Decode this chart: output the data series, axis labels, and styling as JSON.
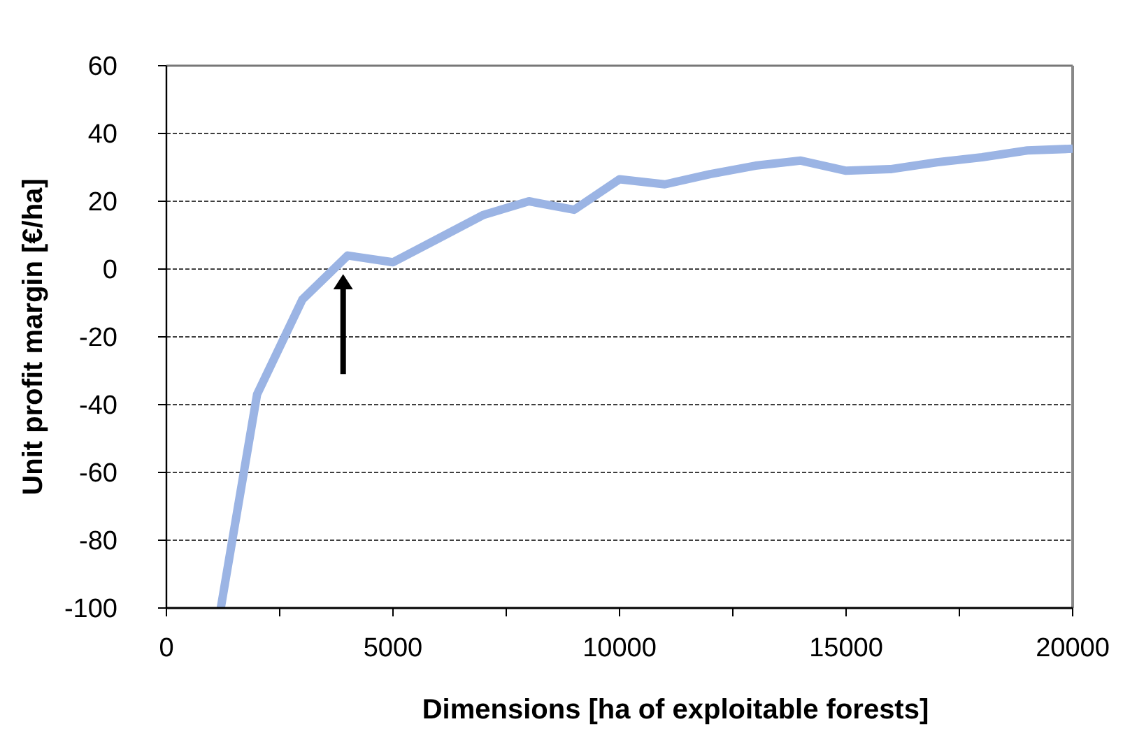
{
  "chart_data": {
    "type": "line",
    "xlabel": "Dimensions [ha of exploitable forests]",
    "ylabel": "Unit profit margin [€/ha]",
    "x": [
      1200,
      2000,
      3000,
      4000,
      5000,
      6000,
      7000,
      8000,
      9000,
      10000,
      11000,
      12000,
      13000,
      14000,
      15000,
      16000,
      17000,
      18000,
      19000,
      20000
    ],
    "series": [
      {
        "color": "#9bb4e4",
        "values": [
          -100,
          -37,
          -9,
          4,
          2,
          9,
          16,
          20,
          17.5,
          26.5,
          25,
          28,
          30.5,
          32,
          29,
          29.5,
          31.5,
          33,
          35,
          35.5
        ]
      }
    ],
    "xlim": [
      0,
      20000
    ],
    "ylim": [
      -100,
      60
    ],
    "xticks": [
      0,
      {
        "value": 2500,
        "label": null
      },
      5000,
      {
        "value": 7500,
        "label": null
      },
      10000,
      {
        "value": 12500,
        "label": null
      },
      15000,
      {
        "value": 17500,
        "label": null
      },
      20000
    ],
    "yticks": [
      -100,
      -80,
      -60,
      -40,
      -20,
      0,
      20,
      40,
      60
    ],
    "grid": "y",
    "marker": "none",
    "line_style": "solid"
  }
}
